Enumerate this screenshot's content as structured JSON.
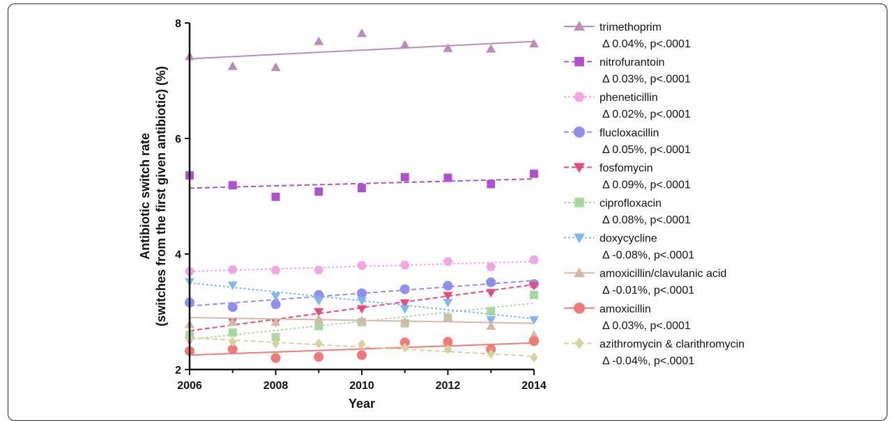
{
  "chart_data": {
    "type": "scatter",
    "title": "",
    "xlabel": "Year",
    "ylabel_line1": "Antibiotic switch rate",
    "ylabel_line2": "(switches from the first given antibiotic) (%)",
    "xlim": [
      2006,
      2014
    ],
    "ylim": [
      2,
      8
    ],
    "xticks": [
      2006,
      2008,
      2010,
      2012,
      2014
    ],
    "yticks": [
      2,
      4,
      6,
      8
    ],
    "legend_position": "right",
    "x": [
      2006,
      2007,
      2008,
      2009,
      2010,
      2011,
      2012,
      2013,
      2014
    ],
    "series": [
      {
        "name": "trimethoprim",
        "stat": "Δ 0.04%, p<.0001",
        "color": "#c08ab8",
        "marker": "triangle-up",
        "line": "solid",
        "values": [
          7.42,
          7.25,
          7.23,
          7.68,
          7.82,
          7.62,
          7.56,
          7.55,
          7.64
        ],
        "trend": [
          7.38,
          7.68
        ]
      },
      {
        "name": "nitrofurantoin",
        "stat": "Δ 0.03%, p<.0001",
        "color": "#b24fd0",
        "marker": "square",
        "line": "dashed",
        "values": [
          5.36,
          5.19,
          4.99,
          5.08,
          5.14,
          5.33,
          5.32,
          5.21,
          5.39
        ],
        "trend": [
          5.14,
          5.3
        ]
      },
      {
        "name": "pheneticillin",
        "stat": "Δ 0.02%, p<.0001",
        "color": "#f3a4e6",
        "marker": "hexagon",
        "line": "dotted",
        "values": [
          3.7,
          3.73,
          3.72,
          3.72,
          3.8,
          3.81,
          3.87,
          3.78,
          3.9
        ],
        "trend": [
          3.7,
          3.87
        ]
      },
      {
        "name": "flucloxacillin",
        "stat": "Δ 0.05%, p<.0001",
        "color": "#8f8ff0",
        "marker": "circle",
        "line": "dashed",
        "values": [
          3.16,
          3.08,
          3.13,
          3.29,
          3.32,
          3.39,
          3.45,
          3.51,
          3.48
        ],
        "trend": [
          3.1,
          3.54
        ]
      },
      {
        "name": "fosfomycin",
        "stat": "Δ 0.09%, p<.0001",
        "color": "#e84a7a",
        "marker": "triangle-down",
        "line": "dashed",
        "values": [
          2.5,
          2.83,
          2.82,
          3.0,
          3.05,
          3.15,
          3.28,
          3.33,
          3.45
        ],
        "trend": [
          2.67,
          3.47
        ]
      },
      {
        "name": "ciprofloxacin",
        "stat": "Δ 0.08%, p<.0001",
        "color": "#a8d8a0",
        "marker": "square",
        "line": "dotted",
        "values": [
          2.6,
          2.64,
          2.56,
          2.75,
          2.82,
          2.8,
          2.9,
          3.01,
          3.29
        ],
        "trend": [
          2.52,
          3.15
        ]
      },
      {
        "name": "doxycycline",
        "stat": "Δ -0.08%, p<.0001",
        "color": "#7fb8ec",
        "marker": "triangle-down",
        "line": "dotted",
        "values": [
          3.52,
          3.46,
          3.27,
          3.19,
          3.19,
          3.05,
          3.16,
          2.86,
          2.86
        ],
        "trend": [
          3.5,
          2.88
        ]
      },
      {
        "name": "amoxicillin/clavulanic acid",
        "stat": "Δ -0.01%, p<.0001",
        "color": "#d6b8a6",
        "marker": "triangle-up",
        "line": "solid",
        "values": [
          2.78,
          2.82,
          2.82,
          2.87,
          2.85,
          2.83,
          2.9,
          2.75,
          2.6
        ],
        "trend": [
          2.9,
          2.8
        ]
      },
      {
        "name": "amoxicillin",
        "stat": "Δ 0.03%, p<.0001",
        "color": "#f07a78",
        "marker": "circle",
        "line": "solid",
        "values": [
          2.32,
          2.35,
          2.2,
          2.22,
          2.25,
          2.47,
          2.48,
          2.35,
          2.49
        ],
        "trend": [
          2.25,
          2.46
        ]
      },
      {
        "name": "azithromycin & clarithromycin",
        "stat": "Δ -0.04%, p<.0001",
        "color": "#d4d49a",
        "marker": "diamond",
        "line": "dashed",
        "values": [
          2.53,
          2.48,
          2.45,
          2.45,
          2.44,
          2.38,
          2.35,
          2.27,
          2.21
        ],
        "trend": [
          2.55,
          2.23
        ]
      }
    ]
  }
}
